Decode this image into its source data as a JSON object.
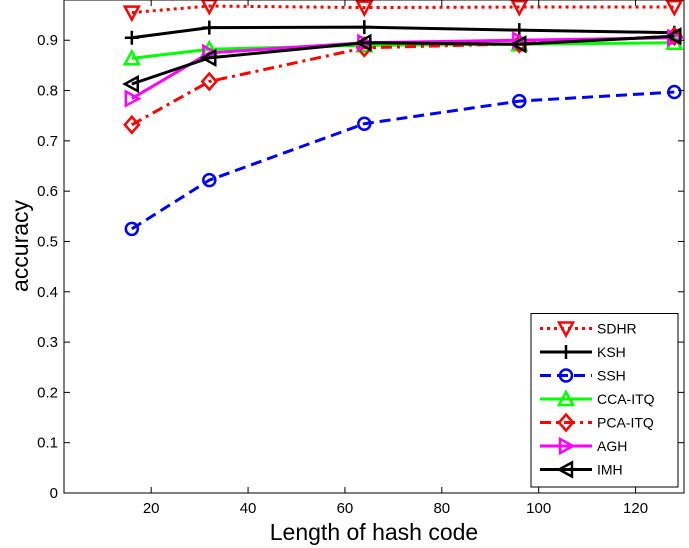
{
  "chart_data": {
    "type": "line",
    "title": "",
    "xlabel": "Length of hash code",
    "ylabel": "accuracy",
    "xlim": [
      2,
      130
    ],
    "ylim": [
      0,
      0.98
    ],
    "xticks": [
      20,
      40,
      60,
      80,
      100,
      120
    ],
    "yticks": [
      0,
      0.1,
      0.2,
      0.3,
      0.4,
      0.5,
      0.6,
      0.7,
      0.8,
      0.9
    ],
    "xtick_labels": [
      "20",
      "40",
      "60",
      "80",
      "100",
      "120"
    ],
    "ytick_labels": [
      "0",
      "0.1",
      "0.2",
      "0.3",
      "0.4",
      "0.5",
      "0.6",
      "0.7",
      "0.8",
      "0.9"
    ],
    "grid": false,
    "legend_position": "bottom-right",
    "x": [
      16,
      32,
      64,
      96,
      128
    ],
    "series": [
      {
        "name": "SDHR",
        "values": [
          0.955,
          0.968,
          0.965,
          0.966,
          0.966
        ],
        "color": "#ff0000",
        "dash": "dotted",
        "marker": "triangle-down"
      },
      {
        "name": "KSH",
        "values": [
          0.905,
          0.925,
          0.926,
          0.92,
          0.915
        ],
        "color": "#000000",
        "dash": "solid",
        "marker": "plus"
      },
      {
        "name": "SSH",
        "values": [
          0.525,
          0.622,
          0.734,
          0.779,
          0.797
        ],
        "color": "#0000ff",
        "dash": "dashed",
        "marker": "circle"
      },
      {
        "name": "CCA-ITQ",
        "values": [
          0.864,
          0.882,
          0.89,
          0.892,
          0.895
        ],
        "color": "#00ff00",
        "dash": "solid",
        "marker": "triangle-up"
      },
      {
        "name": "PCA-ITQ",
        "values": [
          0.732,
          0.818,
          0.885,
          0.893,
          0.908
        ],
        "color": "#ff0000",
        "dash": "dashdot",
        "marker": "diamond"
      },
      {
        "name": "AGH",
        "values": [
          0.784,
          0.875,
          0.895,
          0.9,
          0.905
        ],
        "color": "#ff00ff",
        "dash": "solid",
        "marker": "triangle-right"
      },
      {
        "name": "IMH",
        "values": [
          0.813,
          0.865,
          0.895,
          0.892,
          0.908
        ],
        "color": "#000000",
        "dash": "solid",
        "marker": "triangle-left"
      }
    ]
  }
}
